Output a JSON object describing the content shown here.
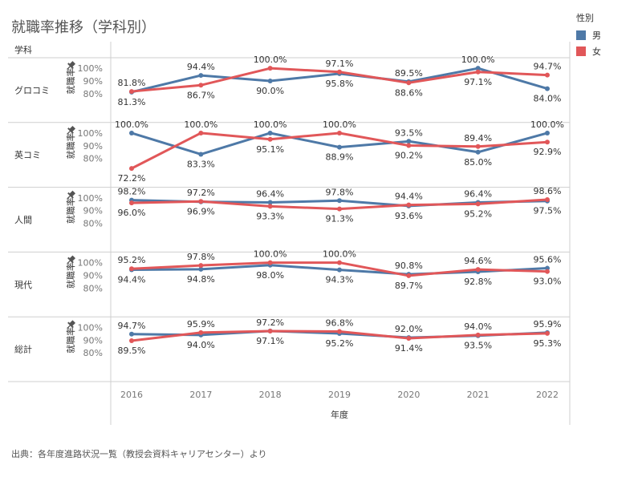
{
  "title": "就職率推移（学科別）",
  "row_header": "学科",
  "legend": {
    "title": "性別",
    "items": [
      {
        "label": "男",
        "color": "#4e79a7"
      },
      {
        "label": "女",
        "color": "#e15759"
      }
    ]
  },
  "source": "出典：各年度進路状況一覧（教授会資料キャリアセンター）より",
  "chart_data": {
    "type": "line",
    "xlabel": "年度",
    "ylabel": "就職率",
    "x": [
      "2016",
      "2017",
      "2018",
      "2019",
      "2020",
      "2021",
      "2022"
    ],
    "y_ticks": [
      "100%",
      "90%",
      "80%"
    ],
    "ylim": [
      70,
      102
    ],
    "grid": false,
    "legend_position": "top-right",
    "panels": [
      {
        "name": "グロコミ",
        "series": [
          {
            "name": "男",
            "color": "#4e79a7",
            "values": [
              81.3,
              94.4,
              90.0,
              95.8,
              89.5,
              100.0,
              84.0
            ],
            "labels": [
              "81.3%",
              "94.4%",
              "90.0%",
              "95.8%",
              "89.5%",
              "100.0%",
              "84.0%"
            ]
          },
          {
            "name": "女",
            "color": "#e15759",
            "values": [
              81.8,
              86.7,
              100.0,
              97.1,
              88.6,
              97.1,
              94.7
            ],
            "labels": [
              "81.8%",
              "86.7%",
              "100.0%",
              "97.1%",
              "88.6%",
              "97.1%",
              "94.7%"
            ]
          }
        ]
      },
      {
        "name": "英コミ",
        "series": [
          {
            "name": "男",
            "color": "#4e79a7",
            "values": [
              100.0,
              83.3,
              100.0,
              88.9,
              93.5,
              85.0,
              100.0
            ],
            "labels": [
              "100.0%",
              "83.3%",
              "100.0%",
              "88.9%",
              "93.5%",
              "85.0%",
              "100.0%"
            ]
          },
          {
            "name": "女",
            "color": "#e15759",
            "values": [
              72.2,
              100.0,
              95.1,
              100.0,
              90.2,
              89.4,
              92.9
            ],
            "labels": [
              "72.2%",
              "100.0%",
              "95.1%",
              "100.0%",
              "90.2%",
              "89.4%",
              "92.9%"
            ]
          }
        ]
      },
      {
        "name": "人間",
        "series": [
          {
            "name": "男",
            "color": "#4e79a7",
            "values": [
              98.2,
              96.9,
              96.4,
              97.8,
              93.6,
              96.4,
              97.5
            ],
            "labels": [
              "98.2%",
              "96.9%",
              "96.4%",
              "97.8%",
              "93.6%",
              "96.4%",
              "97.5%"
            ]
          },
          {
            "name": "女",
            "color": "#e15759",
            "values": [
              96.0,
              97.2,
              93.3,
              91.3,
              94.4,
              95.2,
              98.6
            ],
            "labels": [
              "96.0%",
              "97.2%",
              "93.3%",
              "91.3%",
              "94.4%",
              "95.2%",
              "98.6%"
            ]
          }
        ]
      },
      {
        "name": "現代",
        "series": [
          {
            "name": "男",
            "color": "#4e79a7",
            "values": [
              94.4,
              94.8,
              98.0,
              94.3,
              90.8,
              92.8,
              95.6
            ],
            "labels": [
              "94.4%",
              "94.8%",
              "98.0%",
              "94.3%",
              "90.8%",
              "92.8%",
              "95.6%"
            ]
          },
          {
            "name": "女",
            "color": "#e15759",
            "values": [
              95.2,
              97.8,
              100.0,
              100.0,
              89.7,
              94.6,
              93.0
            ],
            "labels": [
              "95.2%",
              "97.8%",
              "100.0%",
              "100.0%",
              "89.7%",
              "94.6%",
              "93.0%"
            ]
          }
        ]
      },
      {
        "name": "総計",
        "series": [
          {
            "name": "男",
            "color": "#4e79a7",
            "values": [
              94.7,
              94.0,
              97.2,
              95.2,
              92.0,
              93.5,
              95.9
            ],
            "labels": [
              "94.7%",
              "94.0%",
              "97.2%",
              "95.2%",
              "92.0%",
              "93.5%",
              "95.9%"
            ]
          },
          {
            "name": "女",
            "color": "#e15759",
            "values": [
              89.5,
              95.9,
              97.1,
              96.8,
              91.4,
              94.0,
              95.3
            ],
            "labels": [
              "89.5%",
              "95.9%",
              "97.1%",
              "96.8%",
              "91.4%",
              "94.0%",
              "95.3%"
            ]
          }
        ]
      }
    ]
  }
}
